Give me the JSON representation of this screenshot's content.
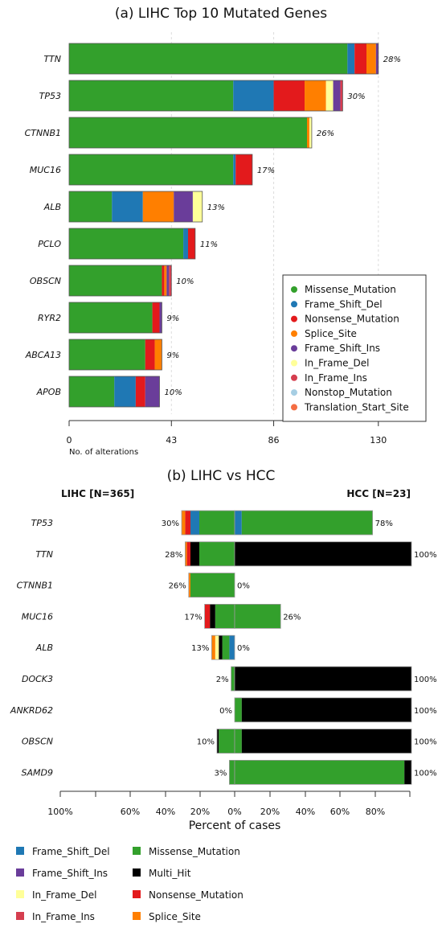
{
  "colors": {
    "Missense_Mutation": "#33a02c",
    "Frame_Shift_Del": "#1f78b4",
    "Nonsense_Mutation": "#e31a1c",
    "Splice_Site": "#ff7f00",
    "Frame_Shift_Ins": "#6a3d9a",
    "In_Frame_Del": "#ffff99",
    "In_Frame_Ins": "#d53e4f",
    "Nonstop_Mutation": "#a6cee3",
    "Translation_Start_Site": "#f46d43",
    "Multi_Hit": "#000000"
  },
  "chart_data": [
    {
      "type": "bar",
      "orientation": "horizontal",
      "stacked": true,
      "title": "(a) LIHC Top 10 Mutated Genes",
      "xlabel": "No. of alterations",
      "xticks": [
        0,
        43,
        86,
        130
      ],
      "xlim": [
        0,
        150
      ],
      "grid": true,
      "legend_position": "bottom-right",
      "legend": [
        "Missense_Mutation",
        "Frame_Shift_Del",
        "Nonsense_Mutation",
        "Splice_Site",
        "Frame_Shift_Ins",
        "In_Frame_Del",
        "In_Frame_Ins",
        "Nonstop_Mutation",
        "Translation_Start_Site"
      ],
      "rows": [
        {
          "gene": "TTN",
          "pct": "28%",
          "segments": [
            [
              "Missense_Mutation",
              117
            ],
            [
              "Frame_Shift_Del",
              3
            ],
            [
              "Nonsense_Mutation",
              5
            ],
            [
              "Splice_Site",
              4
            ],
            [
              "Frame_Shift_Ins",
              1
            ]
          ]
        },
        {
          "gene": "TP53",
          "pct": "30%",
          "segments": [
            [
              "Missense_Mutation",
              69
            ],
            [
              "Frame_Shift_Del",
              17
            ],
            [
              "Nonsense_Mutation",
              13
            ],
            [
              "Splice_Site",
              9
            ],
            [
              "In_Frame_Del",
              3
            ],
            [
              "Frame_Shift_Ins",
              3
            ],
            [
              "In_Frame_Ins",
              1
            ]
          ]
        },
        {
          "gene": "CTNNB1",
          "pct": "26%",
          "segments": [
            [
              "Missense_Mutation",
              100
            ],
            [
              "Splice_Site",
              1
            ],
            [
              "In_Frame_Del",
              1
            ]
          ]
        },
        {
          "gene": "MUC16",
          "pct": "17%",
          "segments": [
            [
              "Missense_Mutation",
              69
            ],
            [
              "Frame_Shift_Del",
              1
            ],
            [
              "Nonsense_Mutation",
              7
            ]
          ]
        },
        {
          "gene": "ALB",
          "pct": "13%",
          "segments": [
            [
              "Missense_Mutation",
              18
            ],
            [
              "Frame_Shift_Del",
              13
            ],
            [
              "Splice_Site",
              13
            ],
            [
              "Frame_Shift_Ins",
              8
            ],
            [
              "In_Frame_Del",
              4
            ]
          ]
        },
        {
          "gene": "PCLO",
          "pct": "11%",
          "segments": [
            [
              "Missense_Mutation",
              48
            ],
            [
              "Frame_Shift_Del",
              2
            ],
            [
              "Nonsense_Mutation",
              3
            ]
          ]
        },
        {
          "gene": "OBSCN",
          "pct": "10%",
          "segments": [
            [
              "Missense_Mutation",
              39
            ],
            [
              "Nonsense_Mutation",
              1
            ],
            [
              "Splice_Site",
              1
            ],
            [
              "Frame_Shift_Ins",
              1
            ],
            [
              "In_Frame_Ins",
              1
            ]
          ]
        },
        {
          "gene": "RYR2",
          "pct": "9%",
          "segments": [
            [
              "Missense_Mutation",
              35
            ],
            [
              "Nonsense_Mutation",
              3
            ],
            [
              "Frame_Shift_Ins",
              1
            ]
          ]
        },
        {
          "gene": "ABCA13",
          "pct": "9%",
          "segments": [
            [
              "Missense_Mutation",
              32
            ],
            [
              "Nonsense_Mutation",
              4
            ],
            [
              "Splice_Site",
              3
            ]
          ]
        },
        {
          "gene": "APOB",
          "pct": "10%",
          "segments": [
            [
              "Missense_Mutation",
              19
            ],
            [
              "Frame_Shift_Del",
              9
            ],
            [
              "Nonsense_Mutation",
              4
            ],
            [
              "Frame_Shift_Ins",
              6
            ]
          ]
        }
      ]
    },
    {
      "type": "bar",
      "orientation": "horizontal",
      "stacked": true,
      "diverging": true,
      "title": "(b) LIHC vs HCC",
      "left_label": "LIHC [N=365]",
      "right_label": "HCC [N=23]",
      "xlabel": "Percent of cases",
      "xticks": [
        "100%",
        "60%",
        "40%",
        "20%",
        "0%",
        "20%",
        "40%",
        "60%",
        "80%"
      ],
      "xlim": [
        -100,
        100
      ],
      "legend_position": "bottom",
      "legend": [
        "Frame_Shift_Del",
        "Missense_Mutation",
        "Frame_Shift_Ins",
        "Multi_Hit",
        "In_Frame_Del",
        "Nonsense_Mutation",
        "In_Frame_Ins",
        "Splice_Site"
      ],
      "rows": [
        {
          "gene": "TP53",
          "left_pct": "30%",
          "right_pct": "78%",
          "left": [
            [
              "Missense_Mutation",
              20
            ],
            [
              "Frame_Shift_Del",
              5
            ],
            [
              "Nonsense_Mutation",
              3
            ],
            [
              "Splice_Site",
              2
            ]
          ],
          "right": [
            [
              "Frame_Shift_Del",
              4
            ],
            [
              "Missense_Mutation",
              74
            ]
          ]
        },
        {
          "gene": "TTN",
          "left_pct": "28%",
          "right_pct": "100%",
          "left": [
            [
              "Missense_Mutation",
              20
            ],
            [
              "Multi_Hit",
              5
            ],
            [
              "Nonsense_Mutation",
              2
            ],
            [
              "Splice_Site",
              1
            ]
          ],
          "right": [
            [
              "Multi_Hit",
              100
            ]
          ]
        },
        {
          "gene": "CTNNB1",
          "left_pct": "26%",
          "right_pct": "0%",
          "left": [
            [
              "Missense_Mutation",
              25
            ],
            [
              "Splice_Site",
              1
            ]
          ],
          "right": []
        },
        {
          "gene": "MUC16",
          "left_pct": "17%",
          "right_pct": "26%",
          "left": [
            [
              "Missense_Mutation",
              11
            ],
            [
              "Multi_Hit",
              3
            ],
            [
              "Nonsense_Mutation",
              3
            ]
          ],
          "right": [
            [
              "Missense_Mutation",
              26
            ]
          ]
        },
        {
          "gene": "ALB",
          "left_pct": "13%",
          "right_pct": "0%",
          "left": [
            [
              "Frame_Shift_Del",
              3
            ],
            [
              "Missense_Mutation",
              4
            ],
            [
              "Multi_Hit",
              2
            ],
            [
              "In_Frame_Del",
              2
            ],
            [
              "Splice_Site",
              2
            ]
          ],
          "right": []
        },
        {
          "gene": "DOCK3",
          "left_pct": "2%",
          "right_pct": "100%",
          "left": [
            [
              "Missense_Mutation",
              2
            ]
          ],
          "right": [
            [
              "Multi_Hit",
              100
            ]
          ]
        },
        {
          "gene": "ANKRD62",
          "left_pct": "0%",
          "right_pct": "100%",
          "left": [],
          "right": [
            [
              "Missense_Mutation",
              4
            ],
            [
              "Multi_Hit",
              96
            ]
          ]
        },
        {
          "gene": "OBSCN",
          "left_pct": "10%",
          "right_pct": "100%",
          "left": [
            [
              "Missense_Mutation",
              9
            ],
            [
              "Multi_Hit",
              1
            ]
          ],
          "right": [
            [
              "Missense_Mutation",
              4
            ],
            [
              "Multi_Hit",
              96
            ]
          ]
        },
        {
          "gene": "SAMD9",
          "left_pct": "3%",
          "right_pct": "100%",
          "left": [
            [
              "Missense_Mutation",
              3
            ]
          ],
          "right": [
            [
              "Missense_Mutation",
              96
            ],
            [
              "Multi_Hit",
              4
            ]
          ]
        }
      ]
    }
  ]
}
